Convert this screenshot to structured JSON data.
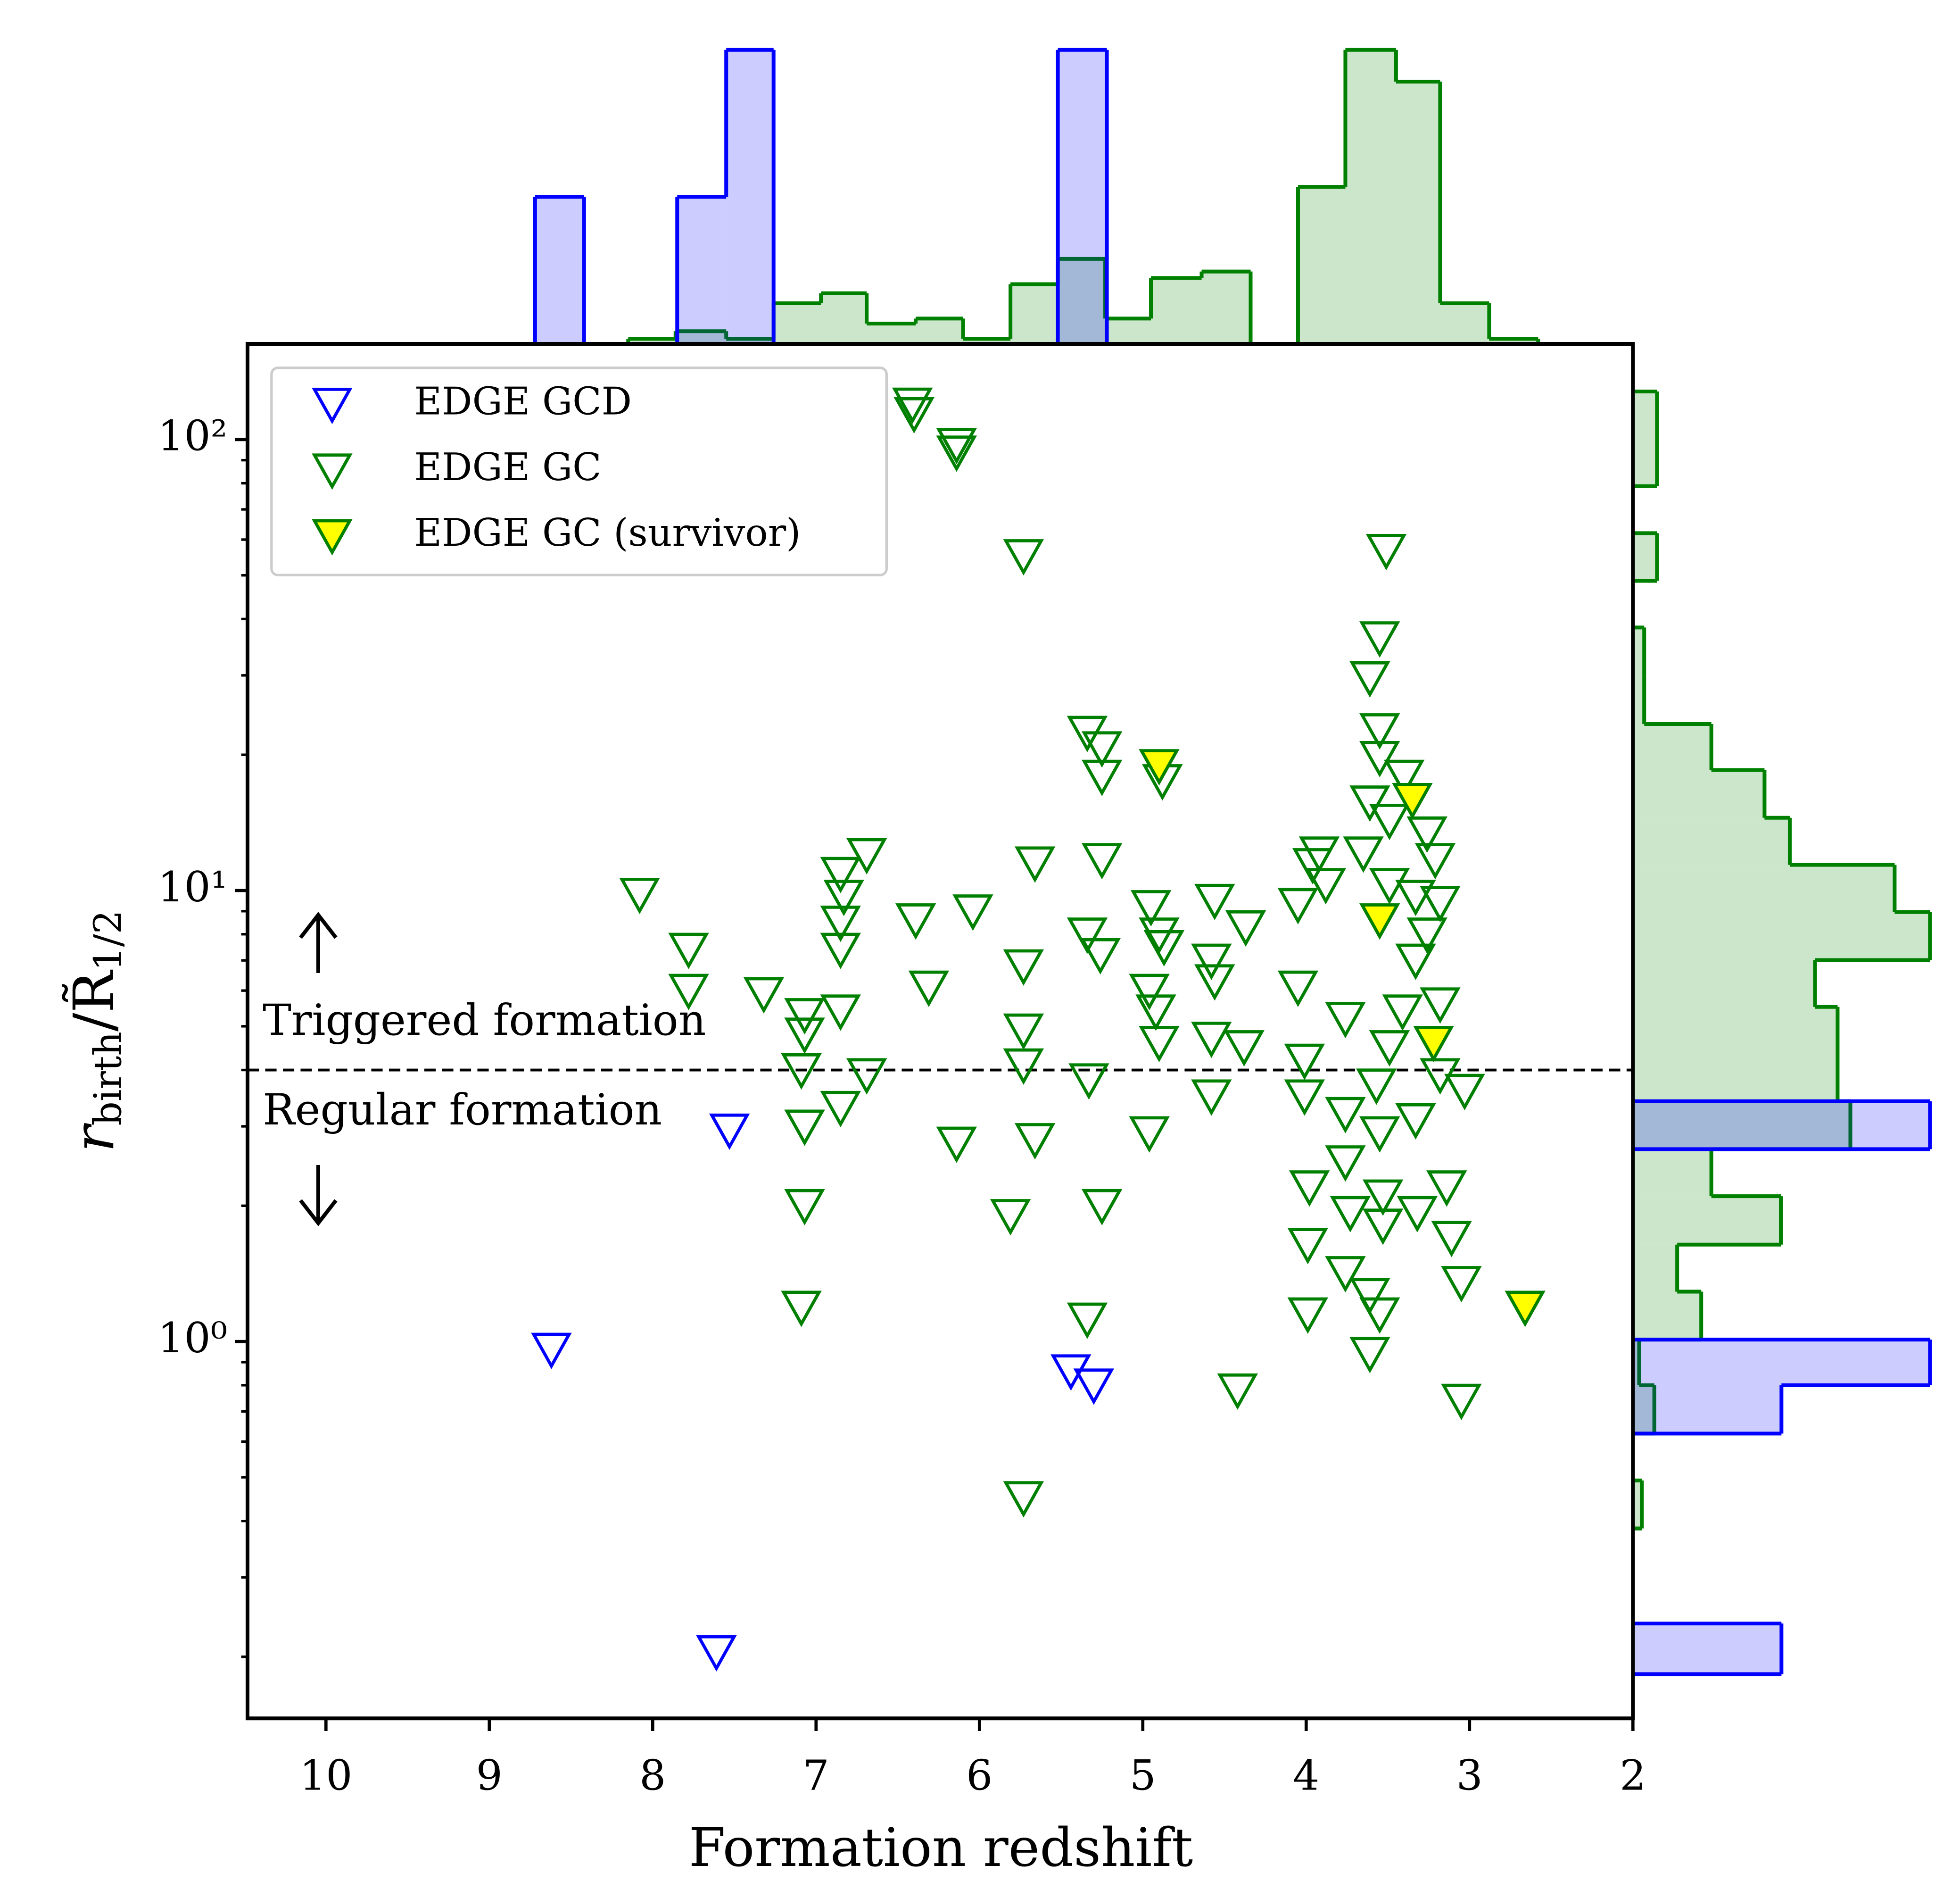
{
  "chart_data": [
    {
      "type": "scatter",
      "xlabel": "Formation redshift",
      "ylabel_parts": [
        "r",
        "birth",
        "/R̃",
        "1/2"
      ],
      "xlim": [
        10.48,
        2
      ],
      "xticks": [
        10,
        9,
        8,
        7,
        6,
        5,
        4,
        3,
        2
      ],
      "ylim": [
        0.146,
        163
      ],
      "ylog": true,
      "yticks": [
        {
          "value": 1,
          "label": "10⁰"
        },
        {
          "value": 10,
          "label": "10¹"
        },
        {
          "value": 100,
          "label": "10²"
        }
      ],
      "yminor": [
        0.2,
        0.3,
        0.4,
        0.5,
        0.6,
        0.7,
        0.8,
        0.9,
        2,
        3,
        4,
        5,
        6,
        7,
        8,
        9,
        20,
        30,
        40,
        50,
        60,
        70,
        80,
        90
      ],
      "hline": 4.0,
      "annotations": [
        {
          "text": "Triggered formation"
        },
        {
          "text": "Regular formation"
        }
      ],
      "legend": "upper left",
      "series": [
        {
          "name": "EDGE GCD",
          "color": "#0000ff",
          "fill": "none",
          "x": [
            7.53,
            8.62,
            5.44,
            5.3,
            7.61
          ],
          "values": [
            2.94,
            0.96,
            0.86,
            0.8,
            0.205
          ]
        },
        {
          "name": "EDGE GC",
          "color": "#008000",
          "fill": "none",
          "x": [
            6.41,
            6.4,
            6.14,
            6.14,
            5.73,
            3.51,
            3.55,
            3.61,
            5.34,
            5.25,
            5.25,
            4.88,
            3.55,
            3.55,
            3.4,
            3.61,
            3.49,
            3.26,
            3.92,
            3.96,
            3.65,
            3.21,
            3.49,
            3.33,
            3.18,
            3.26,
            3.33,
            4.05,
            3.88,
            6.69,
            6.85,
            6.83,
            6.85,
            6.85,
            8.08,
            7.78,
            7.78,
            7.32,
            7.07,
            7.07,
            6.85,
            7.09,
            6.69,
            6.85,
            7.07,
            7.07,
            7.09,
            6.39,
            6.04,
            6.31,
            5.66,
            5.25,
            5.73,
            5.73,
            5.73,
            5.66,
            6.14,
            5.81,
            5.25,
            5.34,
            5.73,
            4.42,
            5.34,
            5.26,
            5.33,
            4.95,
            4.9,
            4.87,
            4.96,
            4.92,
            4.9,
            4.96,
            4.56,
            4.37,
            4.58,
            4.56,
            4.58,
            4.38,
            4.58,
            4.05,
            4.01,
            4.01,
            3.98,
            3.99,
            3.99,
            3.76,
            3.76,
            3.76,
            3.73,
            3.76,
            3.61,
            3.61,
            3.55,
            3.53,
            3.53,
            3.57,
            3.55,
            3.49,
            3.33,
            3.41,
            3.14,
            3.11,
            3.05,
            3.05,
            3.03,
            3.18,
            3.32,
            3.18
          ],
          "values": [
            119.7,
            114,
            97.4,
            93.7,
            55.2,
            56.7,
            36.3,
            29.6,
            22.4,
            20.7,
            17.9,
            17.5,
            22.7,
            19.7,
            17.9,
            15.7,
            14.3,
            13.4,
            12.1,
            11.4,
            12.1,
            11.7,
            10.3,
            9.7,
            9.4,
            8.0,
            7.0,
            9.3,
            10.3,
            12.0,
            10.9,
            9.7,
            8.5,
            7.4,
            9.8,
            7.4,
            6.0,
            5.9,
            5.3,
            4.8,
            5.4,
            4.0,
            3.9,
            3.3,
            3.0,
            2.0,
            1.19,
            8.6,
            9.0,
            6.1,
            11.5,
            11.7,
            6.8,
            4.9,
            4.1,
            2.8,
            2.75,
            1.9,
            2.0,
            1.12,
            0.45,
            0.78,
            8.0,
            7.2,
            3.8,
            9.2,
            8.0,
            7.5,
            6.0,
            5.4,
            4.6,
            2.9,
            9.5,
            8.3,
            7.0,
            6.3,
            4.7,
            4.5,
            3.5,
            6.1,
            4.2,
            3.5,
            2.2,
            1.64,
            1.15,
            5.2,
            3.2,
            2.5,
            1.93,
            1.42,
            1.27,
            0.94,
            1.15,
            2.1,
            1.81,
            3.7,
            2.9,
            4.5,
            3.1,
            5.4,
            2.2,
            1.7,
            1.35,
            0.74,
            3.6,
            3.9,
            1.93,
            5.6
          ]
        },
        {
          "name": "EDGE GC (survivor)",
          "color": "#008000",
          "fill": "#ffff00",
          "x": [
            4.9,
            3.35,
            3.55,
            3.22,
            2.66
          ],
          "values": [
            18.9,
            15.9,
            8.6,
            4.6,
            1.19
          ]
        }
      ]
    },
    {
      "type": "histogram",
      "orientation": "vertical",
      "ylim": [
        0,
        1.04
      ],
      "alpha": 0.2,
      "series": [
        {
          "color": "#008000",
          "bins": [
            8.15,
            7.86,
            7.55,
            7.26,
            6.97,
            6.69,
            6.39,
            6.1,
            5.81,
            5.52,
            5.23,
            4.95,
            4.64,
            4.34,
            4.05,
            3.76,
            3.45,
            3.18,
            2.88,
            2.58
          ],
          "values": [
            0.017,
            0.043,
            0.017,
            0.138,
            0.172,
            0.069,
            0.086,
            0.017,
            0.203,
            0.289,
            0.086,
            0.224,
            0.246,
            0,
            0.534,
            1.0,
            0.892,
            0.138,
            0.017
          ]
        },
        {
          "color": "#0000ff",
          "bins": [
            8.72,
            8.42,
            7.85,
            7.55,
            7.26,
            5.52,
            5.22
          ],
          "values": [
            0.5,
            0,
            0.5,
            1.0,
            0,
            1.0
          ]
        }
      ]
    },
    {
      "type": "histogram",
      "orientation": "horizontal",
      "xlim": [
        0,
        1.05
      ],
      "alpha": 0.2,
      "series": [
        {
          "color": "#008000",
          "bins": [
            127.8,
            100.7,
            78.8,
            62.0,
            48.6,
            38.3,
            29.9,
            23.4,
            18.5,
            14.5,
            11.4,
            8.96,
            7.01,
            5.52,
            4.32,
            3.41,
            2.67,
            2.1,
            1.64,
            1.29,
            1.01,
            0.8,
            0.625,
            0.492,
            0.385
          ],
          "values": [
            0.081,
            0.081,
            0,
            0.081,
            0,
            0.038,
            0.038,
            0.264,
            0.443,
            0.528,
            0.881,
            1.0,
            0.613,
            0.689,
            0.689,
            0.732,
            0.264,
            0.498,
            0.149,
            0.23,
            0.021,
            0.072,
            0,
            0.03
          ]
        },
        {
          "color": "#0000ff",
          "bins": [
            3.41,
            2.67,
            1.01,
            0.8,
            0.625,
            0.237,
            0.183
          ],
          "values": [
            1.0,
            0,
            1.0,
            0.5,
            0,
            0.5
          ]
        }
      ]
    }
  ]
}
